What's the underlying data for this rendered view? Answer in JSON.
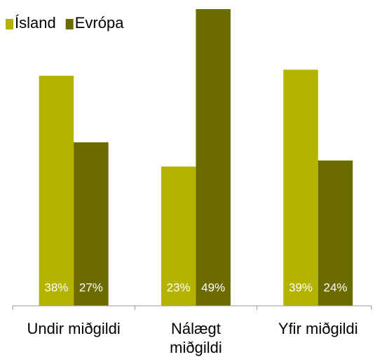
{
  "chart_data": {
    "type": "bar",
    "categories": [
      "Undir miðgildi",
      "Nálægt miðgildi",
      "Yfir miðgildi"
    ],
    "series": [
      {
        "name": "Ísland",
        "color": "#b3b300",
        "values": [
          38,
          23,
          39
        ],
        "value_labels": [
          "38%",
          "23%",
          "39%"
        ]
      },
      {
        "name": "Evrópa",
        "color": "#6b6b00",
        "values": [
          27,
          49,
          24
        ],
        "value_labels": [
          "27%",
          "49%",
          "24%"
        ]
      }
    ],
    "legend": "top-left"
  }
}
